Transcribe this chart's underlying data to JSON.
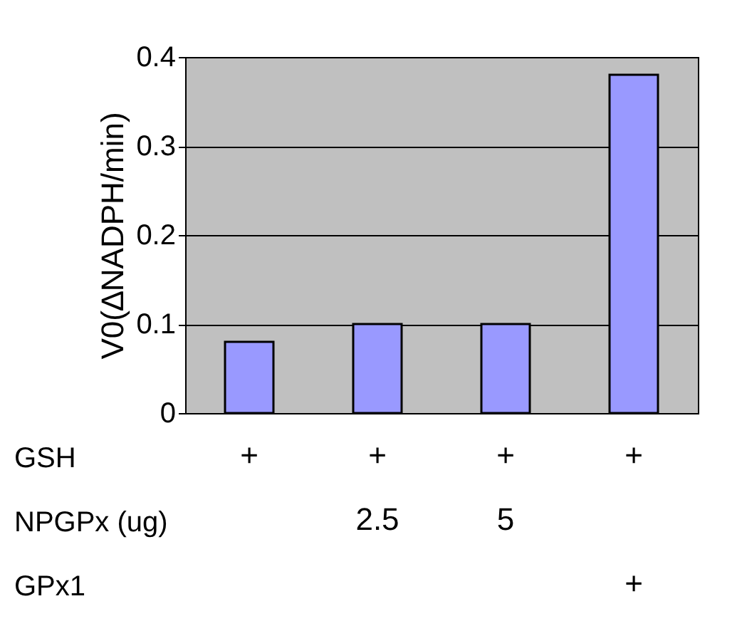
{
  "chart_data": {
    "type": "bar",
    "ylabel": "V0(∆NADPH/min)",
    "categories": [
      "+\n \n ",
      "+\n2.5\n ",
      "+\n5\n ",
      "+\n \n+"
    ],
    "values": [
      0.08,
      0.1,
      0.1,
      0.38
    ],
    "color": "#9999ff",
    "ylim": [
      0,
      0.4
    ],
    "yticks": [
      0,
      0.1,
      0.2,
      0.3,
      0.4
    ],
    "grid": "y",
    "annotations": [
      "GSH",
      "NPGPx (ug)",
      "GPx1"
    ]
  }
}
